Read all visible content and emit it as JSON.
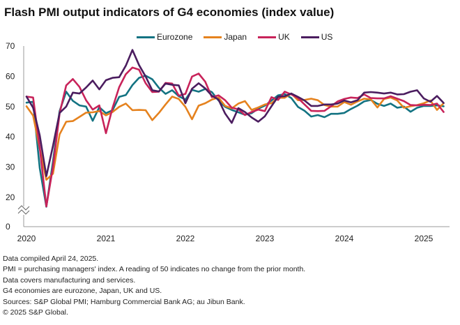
{
  "chart_data": {
    "type": "line",
    "title": "Flash PMI output indicators of G4 economies (index value)",
    "xlabel": "",
    "ylabel": "",
    "ylim": [
      0,
      70
    ],
    "axis_break": [
      0,
      20
    ],
    "yticks": [
      0,
      20,
      30,
      40,
      50,
      60,
      70
    ],
    "xticks": [
      "2020",
      "2021",
      "2022",
      "2023",
      "2024",
      "2025"
    ],
    "x_start": "2020-01",
    "x_end": "2025-04",
    "frequency": "monthly",
    "legend_position": "top",
    "grid": false,
    "series": [
      {
        "name": "Eurozone",
        "color": "#137382",
        "values": [
          51.3,
          51.6,
          29.7,
          13.6,
          31.9,
          48.5,
          54.9,
          51.9,
          50.4,
          50.0,
          45.3,
          49.8,
          47.8,
          48.8,
          53.2,
          53.8,
          57.1,
          59.5,
          60.2,
          59.0,
          56.2,
          54.2,
          55.4,
          53.4,
          52.3,
          55.5,
          54.9,
          55.8,
          54.8,
          52.0,
          49.9,
          48.9,
          48.1,
          47.3,
          47.8,
          49.3,
          50.3,
          52.0,
          53.7,
          54.1,
          52.8,
          49.9,
          48.6,
          46.7,
          47.2,
          46.5,
          47.6,
          47.6,
          47.9,
          49.2,
          50.3,
          51.7,
          52.2,
          50.9,
          50.2,
          51.0,
          49.6,
          50.0,
          48.3,
          49.6,
          50.2,
          50.2,
          50.4,
          50.1
        ]
      },
      {
        "name": "Japan",
        "color": "#E5821E",
        "values": [
          50.1,
          47.0,
          36.2,
          25.8,
          27.8,
          40.8,
          45.0,
          45.2,
          46.6,
          48.0,
          48.1,
          48.5,
          47.1,
          48.2,
          49.9,
          51.0,
          48.8,
          48.9,
          48.8,
          45.5,
          47.9,
          50.7,
          53.3,
          52.5,
          49.9,
          45.8,
          50.3,
          51.1,
          52.3,
          53.0,
          50.2,
          49.4,
          51.0,
          51.8,
          48.9,
          49.7,
          50.7,
          51.1,
          52.9,
          52.9,
          54.3,
          52.1,
          52.2,
          52.6,
          52.1,
          50.5,
          50.0,
          50.0,
          51.5,
          50.6,
          51.7,
          52.6,
          52.4,
          49.7,
          52.5,
          53.0,
          52.0,
          49.6,
          50.1,
          50.5,
          51.1,
          52.0,
          48.9,
          51.1
        ]
      },
      {
        "name": "UK",
        "color": "#C8235A",
        "values": [
          53.3,
          53.0,
          36.5,
          13.8,
          30.0,
          47.7,
          57.0,
          59.1,
          56.5,
          52.1,
          49.0,
          50.4,
          41.2,
          49.6,
          56.4,
          60.7,
          62.9,
          62.2,
          57.7,
          54.8,
          54.9,
          57.8,
          57.6,
          53.6,
          54.2,
          59.9,
          60.9,
          58.2,
          53.1,
          53.7,
          52.1,
          49.6,
          49.1,
          47.2,
          48.2,
          49.0,
          48.5,
          53.1,
          52.2,
          54.9,
          54.0,
          52.8,
          50.7,
          48.6,
          48.5,
          48.6,
          50.1,
          51.7,
          52.5,
          53.0,
          52.8,
          54.0,
          52.8,
          52.7,
          52.7,
          53.4,
          52.6,
          51.8,
          50.5,
          50.4,
          50.6,
          50.5,
          51.0,
          48.2
        ]
      },
      {
        "name": "US",
        "color": "#4B1D5F",
        "values": [
          53.3,
          49.6,
          40.5,
          27.0,
          37.0,
          47.9,
          50.0,
          54.6,
          54.3,
          56.3,
          58.6,
          55.7,
          58.7,
          59.5,
          59.7,
          63.5,
          68.7,
          63.7,
          59.9,
          55.4,
          55.0,
          57.6,
          57.2,
          57.0,
          51.1,
          55.9,
          57.7,
          56.0,
          53.6,
          52.3,
          47.7,
          44.6,
          49.5,
          48.2,
          46.4,
          45.0,
          46.8,
          50.1,
          53.3,
          53.4,
          54.3,
          53.2,
          52.0,
          50.2,
          50.2,
          50.7,
          50.7,
          51.0,
          52.0,
          51.4,
          52.1,
          54.6,
          54.8,
          54.6,
          54.3,
          54.6,
          54.0,
          54.1,
          54.9,
          55.4,
          52.7,
          51.6,
          53.5,
          51.2
        ]
      }
    ]
  },
  "notes": [
    "Data compiled April 24, 2025.",
    "PMI = purchasing managers' index. A reading of 50 indicates no change from the prior month.",
    "Data covers manufacturing and services.",
    "G4 economies are eurozone, Japan, UK and US.",
    "Sources: S&P Global PMI; Hamburg Commercial Bank AG; au Jibun Bank.",
    "© 2025 S&P Global."
  ]
}
